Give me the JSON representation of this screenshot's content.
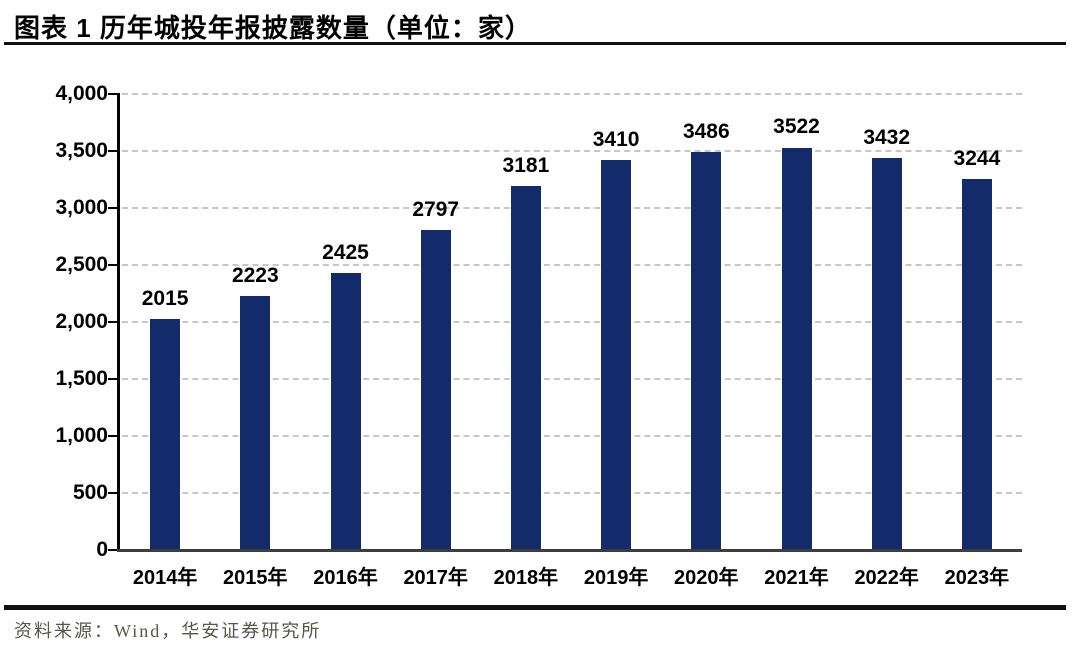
{
  "header": {
    "title": "图表 1 历年城投年报披露数量（单位：家）"
  },
  "footer": {
    "source": "资料来源：Wind，华安证券研究所"
  },
  "chart_data": {
    "type": "bar",
    "title": "图表 1 历年城投年报披露数量（单位：家）",
    "categories": [
      "2014年",
      "2015年",
      "2016年",
      "2017年",
      "2018年",
      "2019年",
      "2020年",
      "2021年",
      "2022年",
      "2023年"
    ],
    "values": [
      2015,
      2223,
      2425,
      2797,
      3181,
      3410,
      3486,
      3522,
      3432,
      3244
    ],
    "value_labels": [
      "2015",
      "2223",
      "2425",
      "2797",
      "3181",
      "3410",
      "3486",
      "3522",
      "3432",
      "3244"
    ],
    "xlabel": "",
    "ylabel": "",
    "ylim": [
      0,
      4000
    ],
    "ytick_interval": 500,
    "ytick_labels": [
      "0",
      "500",
      "1,000",
      "1,500",
      "2,000",
      "2,500",
      "3,000",
      "3,500",
      "4,000"
    ],
    "grid": "horizontal-dashed",
    "legend": "none",
    "bar_color": "#132a6b",
    "gridline_color": "#c7c7c7",
    "axis_color": "#000000",
    "label_color": "#000000",
    "source_text_color": "#585549"
  }
}
